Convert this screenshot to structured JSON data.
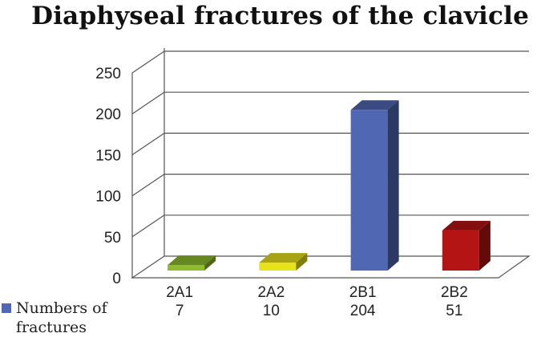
{
  "chart_data": {
    "type": "bar",
    "title": "Diaphyseal fractures of the clavicle",
    "categories": [
      "2A1",
      "2A2",
      "2B1",
      "2B2"
    ],
    "value_labels": [
      "7",
      "10",
      "204",
      "51"
    ],
    "series": [
      {
        "name": "Numbers of fractures",
        "values": [
          7,
          10,
          204,
          51
        ],
        "colors": [
          "#8fbc2e",
          "#e8e21a",
          "#5068b4",
          "#b41414"
        ]
      }
    ],
    "y_ticks": [
      "0",
      "50",
      "100",
      "150",
      "200",
      "250"
    ],
    "ylim": [
      0,
      250
    ],
    "grid": true,
    "three_d": true,
    "legend_position": "bottom-left",
    "legend_color": "#5068b4"
  }
}
